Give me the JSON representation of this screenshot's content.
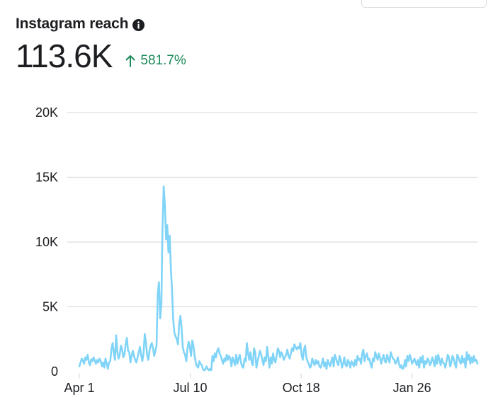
{
  "header": {
    "title": "Instagram reach",
    "info_icon": "info-icon",
    "metric_value": "113.6K",
    "change_icon": "arrow-up-icon",
    "change_text": "581.7%",
    "change_color": "#1d8a5a"
  },
  "colors": {
    "line": "#80d4f7",
    "grid": "#dadde1",
    "text": "#1c1e21"
  },
  "chart_data": {
    "type": "line",
    "title": "Instagram reach",
    "xlabel": "",
    "ylabel": "",
    "ylim": [
      0,
      20000
    ],
    "yticks": [
      0,
      5000,
      10000,
      15000,
      20000
    ],
    "ytick_labels": [
      "0",
      "5K",
      "10K",
      "15K",
      "20K"
    ],
    "xticks": [
      {
        "label": "Apr 1",
        "day": 0
      },
      {
        "label": "Jul 10",
        "day": 100
      },
      {
        "label": "Oct 18",
        "day": 200
      },
      {
        "label": "Jan 26",
        "day": 300
      }
    ],
    "xlim": [
      0,
      359
    ],
    "grid": true,
    "series": [
      {
        "name": "Reach",
        "values": [
          400,
          700,
          1000,
          850,
          600,
          1100,
          900,
          1300,
          700,
          500,
          950,
          800,
          1100,
          850,
          600,
          900,
          700,
          1000,
          800,
          400,
          700,
          300,
          1000,
          600,
          200,
          700,
          800,
          1700,
          2200,
          1400,
          900,
          2800,
          1500,
          1000,
          1300,
          2000,
          1700,
          1100,
          1300,
          2100,
          2600,
          1600,
          1500,
          700,
          1200,
          1600,
          1200,
          900,
          700,
          1100,
          1500,
          1900,
          1300,
          800,
          1400,
          2900,
          2300,
          1300,
          900,
          1600,
          2000,
          2200,
          1800,
          1200,
          1600,
          2000,
          6000,
          6900,
          4100,
          5200,
          11000,
          14300,
          12800,
          10200,
          11300,
          9200,
          10500,
          8000,
          6200,
          4000,
          3000,
          2700,
          2500,
          2100,
          3600,
          4300,
          3400,
          1900,
          1500,
          1300,
          800,
          1800,
          2300,
          1900,
          1200,
          2400,
          2000,
          1200,
          700,
          400,
          300,
          800,
          600,
          500,
          200,
          100,
          150,
          400,
          200,
          100,
          200,
          100,
          1200,
          800,
          1400,
          1100,
          1600,
          1800,
          1400,
          1200,
          900,
          600,
          1000,
          800,
          1300,
          900,
          1200,
          1000,
          400,
          1100,
          800,
          500,
          1300,
          600,
          1000,
          1300,
          700,
          400,
          300,
          1000,
          800,
          2200,
          1400,
          900,
          1500,
          700,
          500,
          1800,
          1500,
          300,
          800,
          1200,
          1600,
          1300,
          900,
          500,
          1100,
          800,
          1900,
          1200,
          300,
          1100,
          600,
          1400,
          900,
          700,
          1200,
          1800,
          1600,
          1100,
          1500,
          1300,
          900,
          1100,
          1300,
          1700,
          1200,
          1000,
          1400,
          1800,
          1600,
          2100,
          1900,
          1700,
          1900,
          1800,
          2200,
          1300,
          900,
          1700,
          2000,
          1100,
          800,
          600,
          300,
          400,
          1000,
          700,
          500,
          900,
          600,
          800,
          400,
          300,
          600,
          1000,
          400,
          700,
          200,
          900,
          600,
          400,
          800,
          1100,
          400,
          1300,
          1000,
          700,
          500,
          1200,
          900,
          300,
          600,
          1100,
          500,
          400,
          900,
          700,
          300,
          800,
          600,
          400,
          900,
          500,
          1200,
          900,
          1000,
          600,
          1400,
          1700,
          800,
          1200,
          1400,
          900,
          1000,
          600,
          300,
          1000,
          800,
          1500,
          1200,
          900,
          1400,
          1100,
          600,
          1000,
          1300,
          800,
          700,
          1300,
          1000,
          700,
          1500,
          1200,
          1000,
          900,
          600,
          800,
          1100,
          600,
          300,
          500,
          200,
          300,
          900,
          400,
          1200,
          800,
          1300,
          1000,
          600,
          800,
          1000,
          700,
          500,
          900,
          300,
          1100,
          700,
          1200,
          300,
          800,
          600,
          1000,
          900,
          500,
          700,
          1100,
          800,
          400,
          1200,
          600,
          1300,
          900,
          500,
          1000,
          700,
          600,
          300,
          800,
          1300,
          1100,
          400,
          700,
          1200,
          1000,
          600,
          300,
          1300,
          1100,
          800,
          600,
          1200,
          700,
          1000,
          300,
          1500,
          900,
          1300,
          600,
          1100,
          700,
          1200,
          800,
          900,
          600
        ]
      }
    ]
  }
}
